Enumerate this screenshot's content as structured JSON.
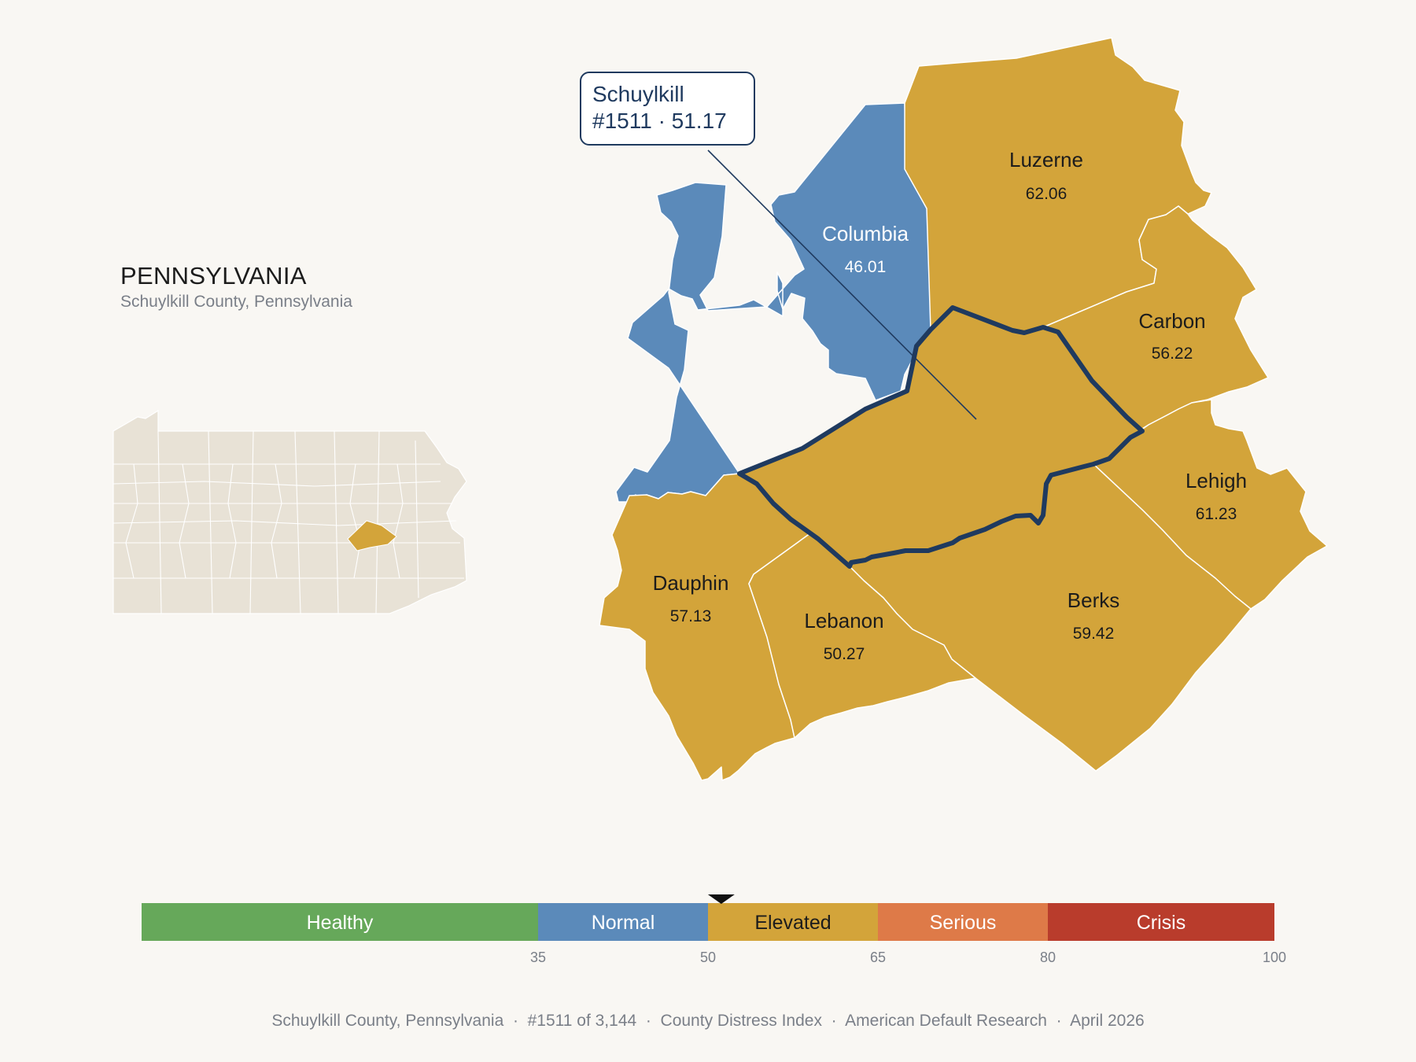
{
  "state": {
    "title": "PENNSYLVANIA",
    "subtitle": "Schuylkill County, Pennsylvania"
  },
  "callout": {
    "county": "Schuylkill",
    "rank_value": "#1511 · 51.17"
  },
  "counties": [
    {
      "id": "luzerne",
      "name": "Luzerne",
      "value": "62.06",
      "category": "Elevated"
    },
    {
      "id": "columbia",
      "name": "Columbia",
      "value": "46.01",
      "category": "Normal"
    },
    {
      "id": "carbon",
      "name": "Carbon",
      "value": "56.22",
      "category": "Elevated"
    },
    {
      "id": "lehigh",
      "name": "Lehigh",
      "value": "61.23",
      "category": "Elevated"
    },
    {
      "id": "berks",
      "name": "Berks",
      "value": "59.42",
      "category": "Elevated"
    },
    {
      "id": "dauphin",
      "name": "Dauphin",
      "value": "57.13",
      "category": "Elevated"
    },
    {
      "id": "lebanon",
      "name": "Lebanon",
      "value": "50.27",
      "category": "Elevated"
    },
    {
      "id": "schuylkill",
      "name": "Schuylkill",
      "value": "51.17",
      "category": "Elevated",
      "highlighted": true
    }
  ],
  "legend": {
    "bands": [
      {
        "label": "Healthy",
        "min": 0,
        "max": 35,
        "color": "#66a85a"
      },
      {
        "label": "Normal",
        "min": 35,
        "max": 50,
        "color": "#5b8aba"
      },
      {
        "label": "Elevated",
        "min": 50,
        "max": 65,
        "color": "#d3a43a"
      },
      {
        "label": "Serious",
        "min": 65,
        "max": 80,
        "color": "#de7a48"
      },
      {
        "label": "Crisis",
        "min": 80,
        "max": 100,
        "color": "#b93c2c"
      }
    ],
    "ticks": [
      "35",
      "50",
      "65",
      "80",
      "100"
    ],
    "marker_value": 51.17
  },
  "colors": {
    "background": "#f9f7f3",
    "elevated": "#d3a43a",
    "normal": "#5b8aba",
    "highlight_outline": "#1f3a5f",
    "inset_fill": "#e8e2d6"
  },
  "footer": {
    "county": "Schuylkill County, Pennsylvania",
    "rank": "#1511 of 3,144",
    "index": "County Distress Index",
    "source": "American Default Research",
    "date": "April 2026",
    "separator": "·"
  }
}
